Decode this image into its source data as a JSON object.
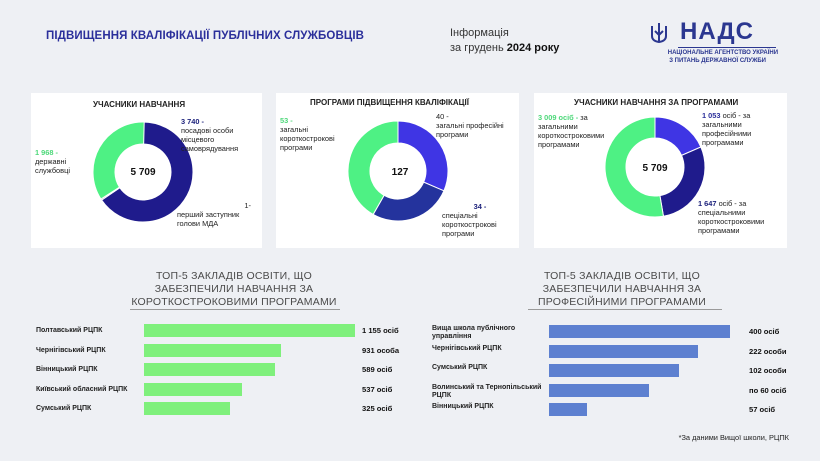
{
  "header": {
    "title": "ПІДВИЩЕННЯ КВАЛІФІКАЦІЇ ПУБЛІЧНИХ СЛУЖБОВЦІВ",
    "info_line1": "Інформація",
    "info_line2_prefix": "за грудень ",
    "info_line2_bold": "2024 року",
    "logo_word": "НАДС",
    "logo_sub1": "НАЦІОНАЛЬНЕ АГЕНТСТВО УКРАЇНИ",
    "logo_sub2": "З ПИТАНЬ ДЕРЖАВНОЇ СЛУЖБИ"
  },
  "colors": {
    "green": "#4ef184",
    "navy": "#1f1b8c",
    "violet": "#3f35e4",
    "blue_dark": "#24339d",
    "bar_green": "#7ff07c",
    "bar_blue": "#5d80d0"
  },
  "chart_data": [
    {
      "type": "pie",
      "title": "УЧАСНИКИ НАВЧАННЯ",
      "center_label": "5 709",
      "slices": [
        {
          "label_value": "3 740 -",
          "label_text": "посадові особи місцевого самоврядування",
          "value": 3740,
          "color": "#1f1b8c"
        },
        {
          "label_value": "1-",
          "label_text": "перший заступник голови МДА",
          "value": 1,
          "color": "#111111"
        },
        {
          "label_value": "1 968 -",
          "label_text": "державні службовці",
          "value": 1968,
          "color": "#4ef184"
        }
      ]
    },
    {
      "type": "pie",
      "title": "ПРОГРАМИ ПІДВИЩЕННЯ КВАЛІФІКАЦІЇ",
      "center_label": "127",
      "slices": [
        {
          "label_value": "40 -",
          "label_text": "загальні професійні програми",
          "value": 40,
          "color": "#3f35e4"
        },
        {
          "label_value": "34 -",
          "label_text": "спеціальні короткострокові програми",
          "value": 34,
          "color": "#24339d"
        },
        {
          "label_value": "53 -",
          "label_text": "загальні короткострокові програми",
          "value": 53,
          "color": "#4ef184"
        }
      ]
    },
    {
      "type": "pie",
      "title": "УЧАСНИКИ НАВЧАННЯ ЗА ПРОГРАМАМИ",
      "center_label": "5 709",
      "slices": [
        {
          "label_value": "1 053 ",
          "label_text": "осіб - за загальними професійними програмами",
          "value": 1053,
          "color": "#3f35e4"
        },
        {
          "label_value": "1 647 ",
          "label_text": "осіб - за спеціальними короткостроковими програмами",
          "value": 1647,
          "color": "#1f1b8c"
        },
        {
          "label_value": "3 009 осіб - ",
          "label_text": "за загальними короткостроковими програмами",
          "value": 3009,
          "color": "#4ef184"
        }
      ]
    },
    {
      "type": "bar",
      "title": "ТОП-5 ЗАКЛАДІВ ОСВІТИ, ЩО ЗАБЕЗПЕЧИЛИ НАВЧАННЯ ЗА КОРОТКОСТРОКОВИМИ ПРОГРАМАМИ",
      "title_lines": [
        "ТОП-5 ЗАКЛАДІВ ОСВІТИ, ЩО",
        "ЗАБЕЗПЕЧИЛИ НАВЧАННЯ ЗА",
        "КОРОТКОСТРОКОВИМИ ПРОГРАМАМИ"
      ],
      "categories": [
        "Полтавський РЦПК",
        "Чернігівський РЦПК",
        "Вінницький РЦПК",
        "Київський обласний РЦПК",
        "Сумський РЦПК"
      ],
      "values": [
        1155,
        931,
        589,
        537,
        325
      ],
      "value_labels": [
        "1 155 осіб",
        "931 особа",
        "589 осіб",
        "537 осіб",
        "325 осіб"
      ],
      "bar_values": [
        1155,
        750,
        715,
        537,
        470
      ],
      "color": "#7ff07c"
    },
    {
      "type": "bar",
      "title": "ТОП-5 ЗАКЛАДІВ ОСВІТИ, ЩО ЗАБЕЗПЕЧИЛИ НАВЧАННЯ ЗА ПРОФЕСІЙНИМИ ПРОГРАМАМИ",
      "title_lines": [
        "ТОП-5 ЗАКЛАДІВ ОСВІТИ, ЩО",
        "ЗАБЕЗПЕЧИЛИ НАВЧАННЯ ЗА",
        "ПРОФЕСІЙНИМИ ПРОГРАМАМИ"
      ],
      "categories": [
        "Вища школа публічного управління",
        "Чернігівський РЦПК",
        "Сумський РЦПК",
        "Волинський та Тернопільський РЦПК",
        "Вінницький РЦПК"
      ],
      "values": [
        400,
        222,
        102,
        60,
        57
      ],
      "value_labels": [
        "400 осіб",
        "222 особи",
        "102 особи",
        "по 60 осіб",
        "57 осіб"
      ],
      "bar_values": [
        400,
        330,
        287,
        222,
        85
      ],
      "color": "#5d80d0"
    }
  ],
  "footnote": "*За даними Вищої школи, РЦПК"
}
